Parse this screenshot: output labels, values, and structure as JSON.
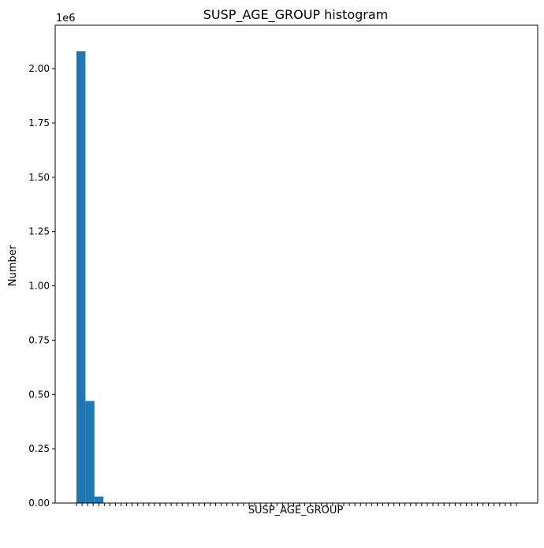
{
  "chart_data": {
    "type": "bar",
    "title": "SUSP_AGE_GROUP histogram",
    "xlabel": "SUSP_AGE_GROUP",
    "ylabel": "Number",
    "offset_text": "1e6",
    "ylim": [
      0,
      2.2
    ],
    "yticks": [
      0.0,
      0.25,
      0.5,
      0.75,
      1.0,
      1.25,
      1.5,
      1.75,
      2.0
    ],
    "ytick_labels": [
      "0.00",
      "0.25",
      "0.50",
      "0.75",
      "1.00",
      "1.25",
      "1.50",
      "1.75",
      "2.00"
    ],
    "x_tick_count": 80,
    "values": [
      2.08,
      0.47,
      0.03
    ],
    "color": "#1f77b4",
    "grid": false,
    "legend": "none"
  }
}
